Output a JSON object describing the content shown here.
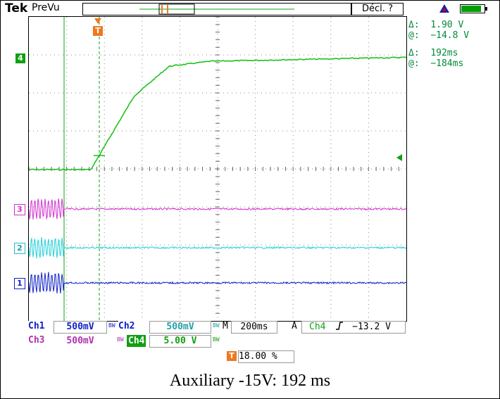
{
  "header": {
    "brand": "Tek",
    "mode": "PreVu",
    "trigger_status": "Décl. ?"
  },
  "cursor_readouts": {
    "volt_delta_label": "Δ:",
    "volt_delta": "1.90 V",
    "volt_at_label": "@:",
    "volt_at": "−14.8 V",
    "time_delta_label": "Δ:",
    "time_delta": "192ms",
    "time_at_label": "@:",
    "time_at": "−184ms"
  },
  "channel_markers": {
    "ch1": "1",
    "ch2": "2",
    "ch3": "3",
    "ch4": "4",
    "trigger": "T"
  },
  "settings": {
    "ch1_label": "Ch1",
    "ch1_scale": "500mV",
    "ch2_label": "Ch2",
    "ch2_scale": "500mV",
    "ch3_label": "Ch3",
    "ch3_scale": "500mV",
    "ch4_label": "Ch4",
    "ch4_scale": "5.00 V",
    "bw_flag": "BW",
    "timebase_prefix": "M",
    "timebase": "200ms",
    "trigger_mode": "A",
    "trigger_source": "Ch4",
    "trigger_slope_icon": "rising-edge-icon",
    "trigger_level": "−13.2 V",
    "trigger_position": "18.00 %"
  },
  "colors": {
    "ch1": "#1020c8",
    "ch2": "#20d0d8",
    "ch3": "#d030d0",
    "ch4": "#10c010",
    "trigger": "#f07820",
    "readout": "#008a3a"
  },
  "caption": "Auxiliary -15V: 192 ms"
}
